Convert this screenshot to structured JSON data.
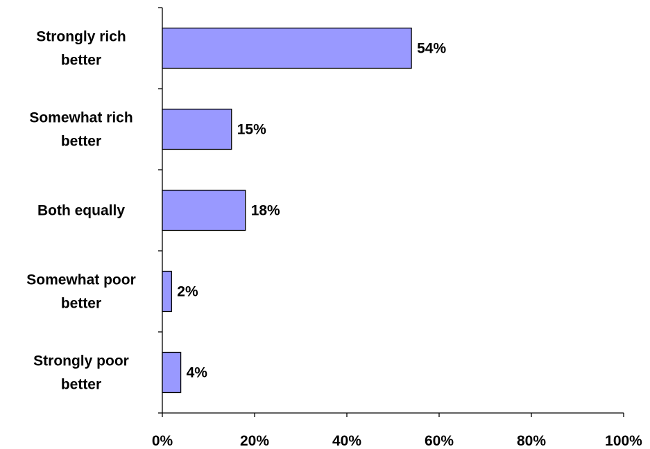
{
  "chart_data": {
    "type": "bar",
    "orientation": "horizontal",
    "categories": [
      [
        "Strongly rich",
        "better"
      ],
      [
        "Somewhat rich",
        "better"
      ],
      [
        "Both equally"
      ],
      [
        "Somewhat poor",
        "better"
      ],
      [
        "Strongly poor",
        "better"
      ]
    ],
    "values": [
      54,
      15,
      18,
      2,
      4
    ],
    "value_labels": [
      "54%",
      "15%",
      "18%",
      "2%",
      "4%"
    ],
    "xlim": [
      0,
      100
    ],
    "xticks": [
      0,
      20,
      40,
      60,
      80,
      100
    ],
    "xtick_labels": [
      "0%",
      "20%",
      "40%",
      "60%",
      "80%",
      "100%"
    ],
    "bar_color": "#9999ff",
    "bar_edge_color": "#000000",
    "grid": false,
    "legend": "none"
  }
}
